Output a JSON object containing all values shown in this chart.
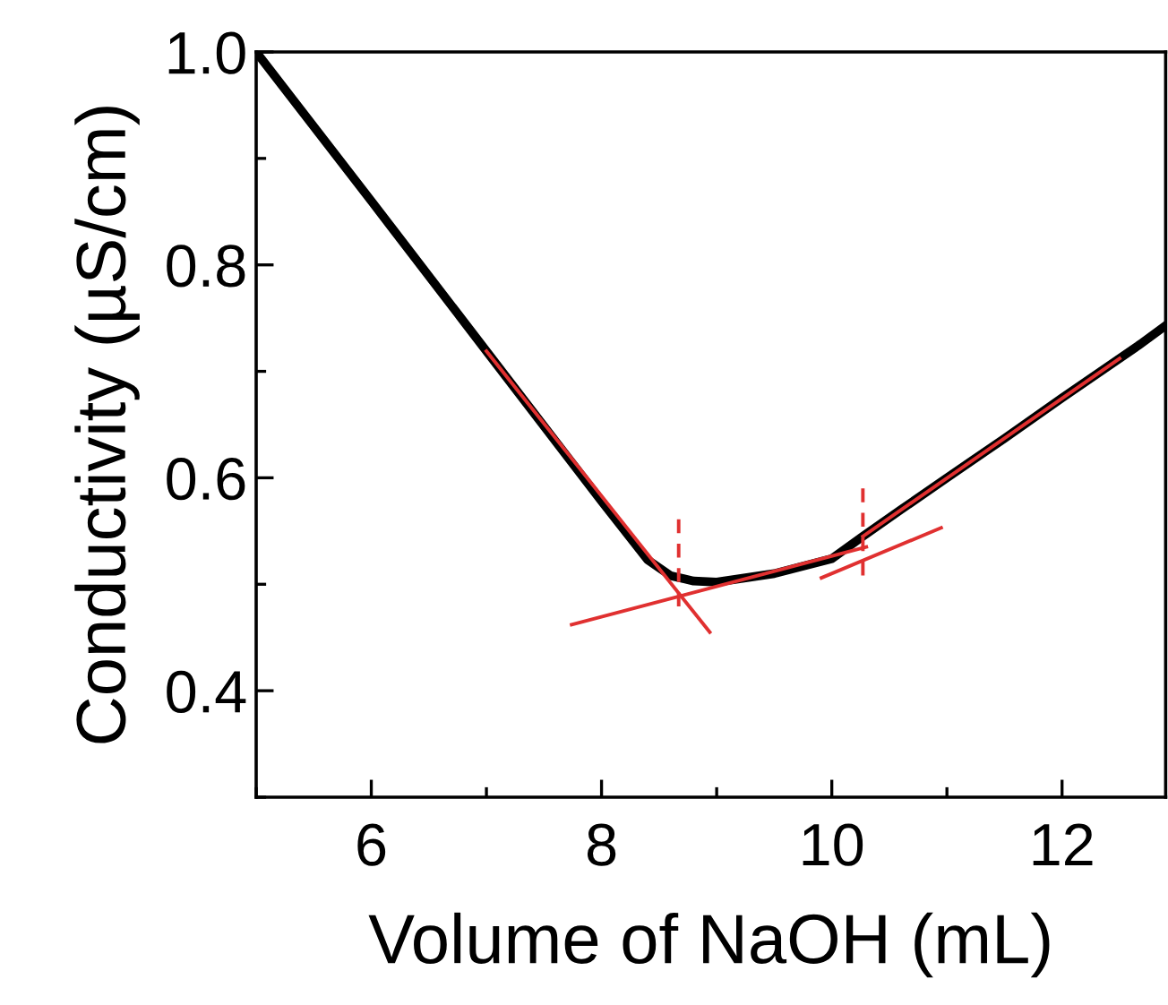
{
  "chart_data": {
    "type": "line",
    "xlabel": "Volume of NaOH (mL)",
    "ylabel": "Conductivity (µS/cm)",
    "xlim": [
      5,
      12.9
    ],
    "ylim": [
      0.3,
      1.0
    ],
    "xticks": [
      6,
      8,
      10,
      12
    ],
    "yticks": [
      0.4,
      0.6,
      0.8,
      {
        "value": 1,
        "label": "1.0"
      }
    ],
    "grid": false,
    "legend": false,
    "marker": "none",
    "series": [
      {
        "color": "#000000",
        "x": [
          5.0,
          6.0,
          7.0,
          8.0,
          8.4,
          8.6,
          8.8,
          9.0,
          9.5,
          10.0,
          10.27,
          10.6,
          11.0,
          11.5,
          12.0,
          12.66,
          12.9
        ],
        "values": [
          1.0,
          0.86,
          0.719,
          0.578,
          0.523,
          0.508,
          0.503,
          0.502,
          0.51,
          0.524,
          0.545,
          0.57,
          0.6,
          0.637,
          0.675,
          0.724,
          0.743
        ]
      },
      {
        "color": "#e03030",
        "x": [
          7.0,
          8.94
        ],
        "values": [
          0.719,
          0.455
        ]
      },
      {
        "color": "#e03030",
        "x": [
          7.74,
          10.3
        ],
        "values": [
          0.462,
          0.535
        ]
      },
      {
        "color": "#e03030",
        "x": [
          9.91,
          10.95
        ],
        "values": [
          0.506,
          0.553
        ]
      },
      {
        "color": "#e03030",
        "x": [
          10.27,
          12.5
        ],
        "values": [
          0.545,
          0.712
        ]
      },
      {
        "color": "#e03030",
        "line_style": "dashed",
        "x": [
          8.67,
          8.67
        ],
        "values": [
          0.561,
          0.477
        ]
      },
      {
        "color": "#e03030",
        "line_style": "dashed",
        "x": [
          10.27,
          10.27
        ],
        "values": [
          0.59,
          0.506
        ]
      }
    ]
  }
}
